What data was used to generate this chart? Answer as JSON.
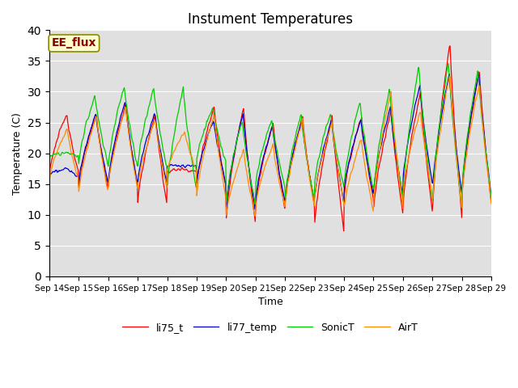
{
  "title": "Instument Temperatures",
  "xlabel": "Time",
  "ylabel": "Temperature (C)",
  "ylim": [
    0,
    40
  ],
  "yticks": [
    0,
    5,
    10,
    15,
    20,
    25,
    30,
    35,
    40
  ],
  "x_labels": [
    "Sep 14",
    "Sep 15",
    "Sep 16",
    "Sep 17",
    "Sep 18",
    "Sep 19",
    "Sep 20",
    "Sep 21",
    "Sep 22",
    "Sep 23",
    "Sep 24",
    "Sep 25",
    "Sep 26",
    "Sep 27",
    "Sep 28",
    "Sep 29"
  ],
  "annotation_text": "EE_flux",
  "annotation_color": "#8B0000",
  "annotation_bg": "#FFFFCC",
  "annotation_border": "#8B8B00",
  "colors": {
    "li75_t": "#FF0000",
    "li77_temp": "#0000CC",
    "SonicT": "#00CC00",
    "AirT": "#FF8C00"
  },
  "bg_color": "#E0E0E0",
  "title_fontsize": 12,
  "axis_fontsize": 9,
  "legend_fontsize": 9,
  "figsize": [
    6.4,
    4.8
  ],
  "dpi": 100
}
